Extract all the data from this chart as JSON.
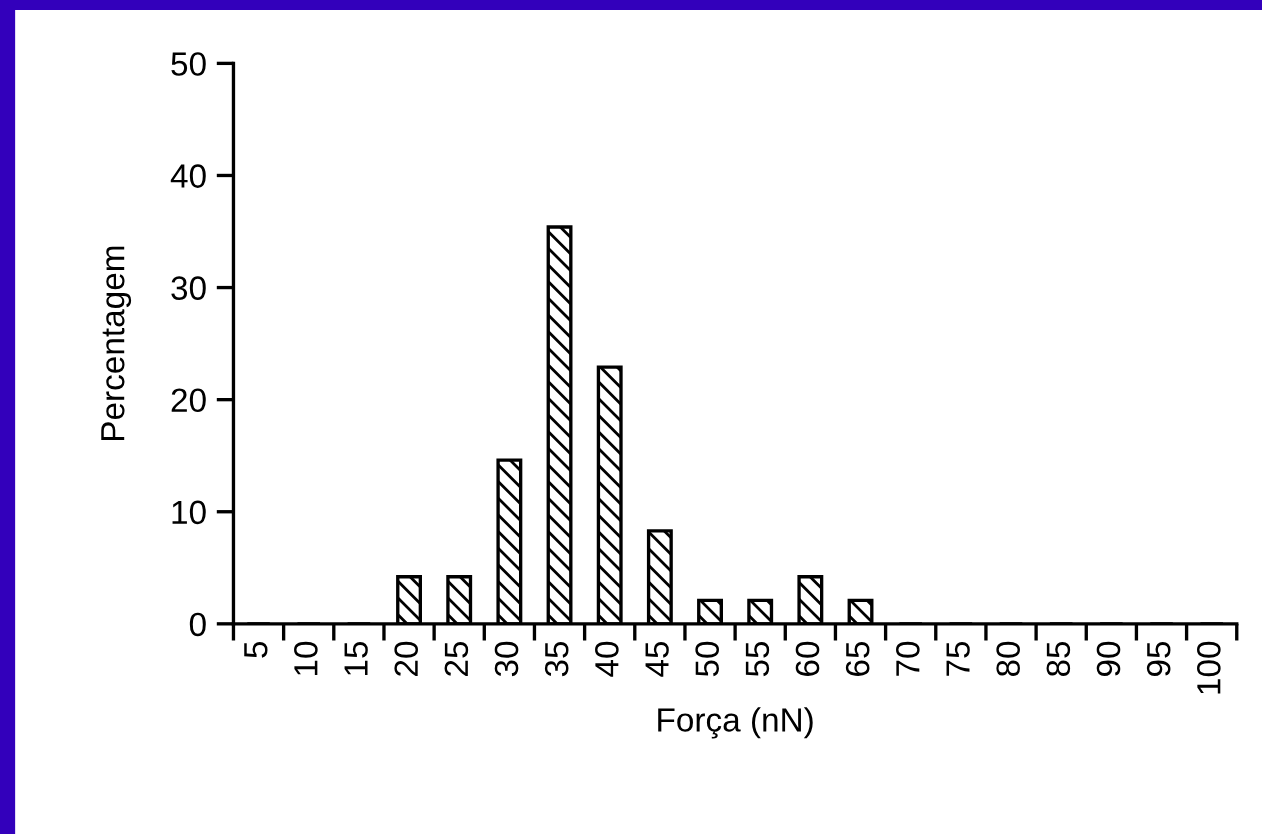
{
  "chart_data": {
    "type": "bar",
    "xlabel": "Força (nN)",
    "ylabel": "Percentagem",
    "categories": [
      "5",
      "10",
      "15",
      "20",
      "25",
      "30",
      "35",
      "40",
      "45",
      "50",
      "55",
      "60",
      "65",
      "70",
      "75",
      "80",
      "85",
      "90",
      "95",
      "100"
    ],
    "values": [
      0,
      0,
      0,
      4.2,
      4.2,
      14.6,
      35.4,
      22.9,
      8.3,
      2.1,
      2.1,
      4.2,
      2.1,
      0,
      0,
      0,
      0,
      0,
      0,
      0
    ],
    "color": "#000000",
    "ylim": [
      0,
      50
    ],
    "yticks": [
      0,
      10,
      20,
      30,
      40,
      50
    ],
    "grid": false,
    "legend": false
  }
}
